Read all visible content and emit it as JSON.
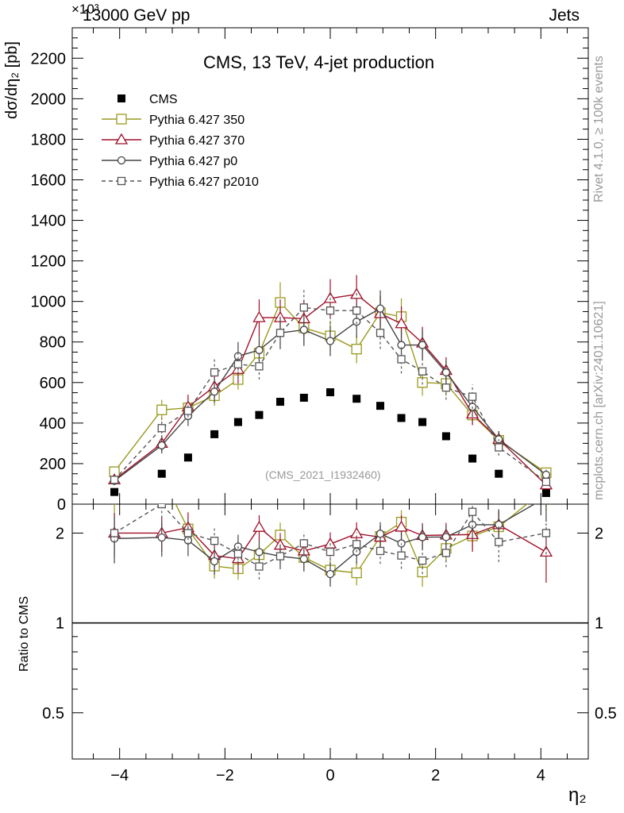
{
  "header": {
    "process": "13000 GeV pp",
    "category": "Jets",
    "exponent": "×10³"
  },
  "side_text": {
    "rivet": "Rivet 4.1.0, ≥ 100k events",
    "source": "mcplots.cern.ch [arXiv:2401.10621]"
  },
  "chart_data": {
    "type": "line",
    "title": "CMS, 13 TeV, 4-jet production",
    "watermark": "(CMS_2021_I1932460)",
    "xlabel": "η₂",
    "ylabel": "dσ/dη₂ [pb]",
    "ratio_ylabel": "Ratio to CMS",
    "xlim": [
      -4.9,
      4.9
    ],
    "ylim": [
      0,
      2350
    ],
    "ratio_ylim": [
      0.35,
      2.5
    ],
    "x_ticks": [
      -4,
      -2,
      0,
      2,
      4
    ],
    "x_tick_labels": [
      "−4",
      "−2",
      "0",
      "2",
      "4"
    ],
    "y_ticks": [
      0,
      200,
      400,
      600,
      800,
      1000,
      1200,
      1400,
      1600,
      1800,
      2000,
      2200
    ],
    "y_tick_labels": [
      "0",
      "200",
      "400",
      "600",
      "800",
      "1000",
      "1200",
      "1400",
      "1600",
      "1800",
      "2000",
      "2200"
    ],
    "ratio_ticks": [
      0.5,
      1,
      2
    ],
    "ratio_tick_labels": [
      "0.5",
      "1",
      "2"
    ],
    "x": [
      -4.1,
      -3.2,
      -2.7,
      -2.2,
      -1.75,
      -1.35,
      -0.95,
      -0.5,
      0,
      0.5,
      0.95,
      1.35,
      1.75,
      2.2,
      2.7,
      3.2,
      4.1
    ],
    "series": [
      {
        "name": "CMS",
        "color": "#000000",
        "marker": "filled-square",
        "dash": "none",
        "values": [
          60,
          150,
          230,
          345,
          405,
          440,
          505,
          525,
          552,
          520,
          485,
          425,
          405,
          335,
          225,
          150,
          55
        ],
        "errors": [
          0,
          0,
          0,
          0,
          0,
          0,
          0,
          0,
          0,
          0,
          0,
          0,
          0,
          0,
          0,
          0,
          0
        ]
      },
      {
        "name": "Pythia 6.427 350",
        "color": "#9a9a20",
        "marker": "open-square",
        "dash": "none",
        "values": [
          160,
          465,
          475,
          535,
          615,
          745,
          995,
          870,
          830,
          765,
          945,
          925,
          600,
          595,
          440,
          315,
          155
        ],
        "errors": [
          25,
          50,
          50,
          50,
          50,
          60,
          100,
          80,
          75,
          70,
          85,
          90,
          65,
          60,
          50,
          40,
          25
        ]
      },
      {
        "name": "Pythia 6.427 370",
        "color": "#a0102a",
        "marker": "open-triangle",
        "dash": "none",
        "values": [
          120,
          300,
          480,
          580,
          665,
          920,
          920,
          915,
          1015,
          1035,
          940,
          890,
          795,
          660,
          445,
          320,
          95
        ],
        "errors": [
          20,
          40,
          60,
          60,
          70,
          90,
          90,
          90,
          95,
          95,
          85,
          85,
          80,
          65,
          55,
          40,
          20
        ]
      },
      {
        "name": "Pythia 6.427 p0",
        "color": "#444444",
        "marker": "open-circle",
        "dash": "none",
        "values": [
          115,
          290,
          435,
          555,
          730,
          760,
          845,
          860,
          805,
          900,
          965,
          785,
          785,
          650,
          480,
          320,
          145
        ],
        "errors": [
          20,
          40,
          50,
          55,
          70,
          70,
          80,
          80,
          75,
          80,
          90,
          75,
          75,
          60,
          50,
          40,
          25
        ]
      },
      {
        "name": "Pythia 6.427 p2010",
        "color": "#555555",
        "marker": "open-square-small",
        "dash": "5,4",
        "values": [
          120,
          375,
          460,
          650,
          690,
          680,
          845,
          970,
          955,
          955,
          845,
          715,
          655,
          575,
          530,
          280,
          110
        ],
        "errors": [
          20,
          50,
          55,
          65,
          70,
          65,
          80,
          90,
          90,
          90,
          80,
          70,
          65,
          60,
          60,
          40,
          20
        ]
      }
    ]
  }
}
